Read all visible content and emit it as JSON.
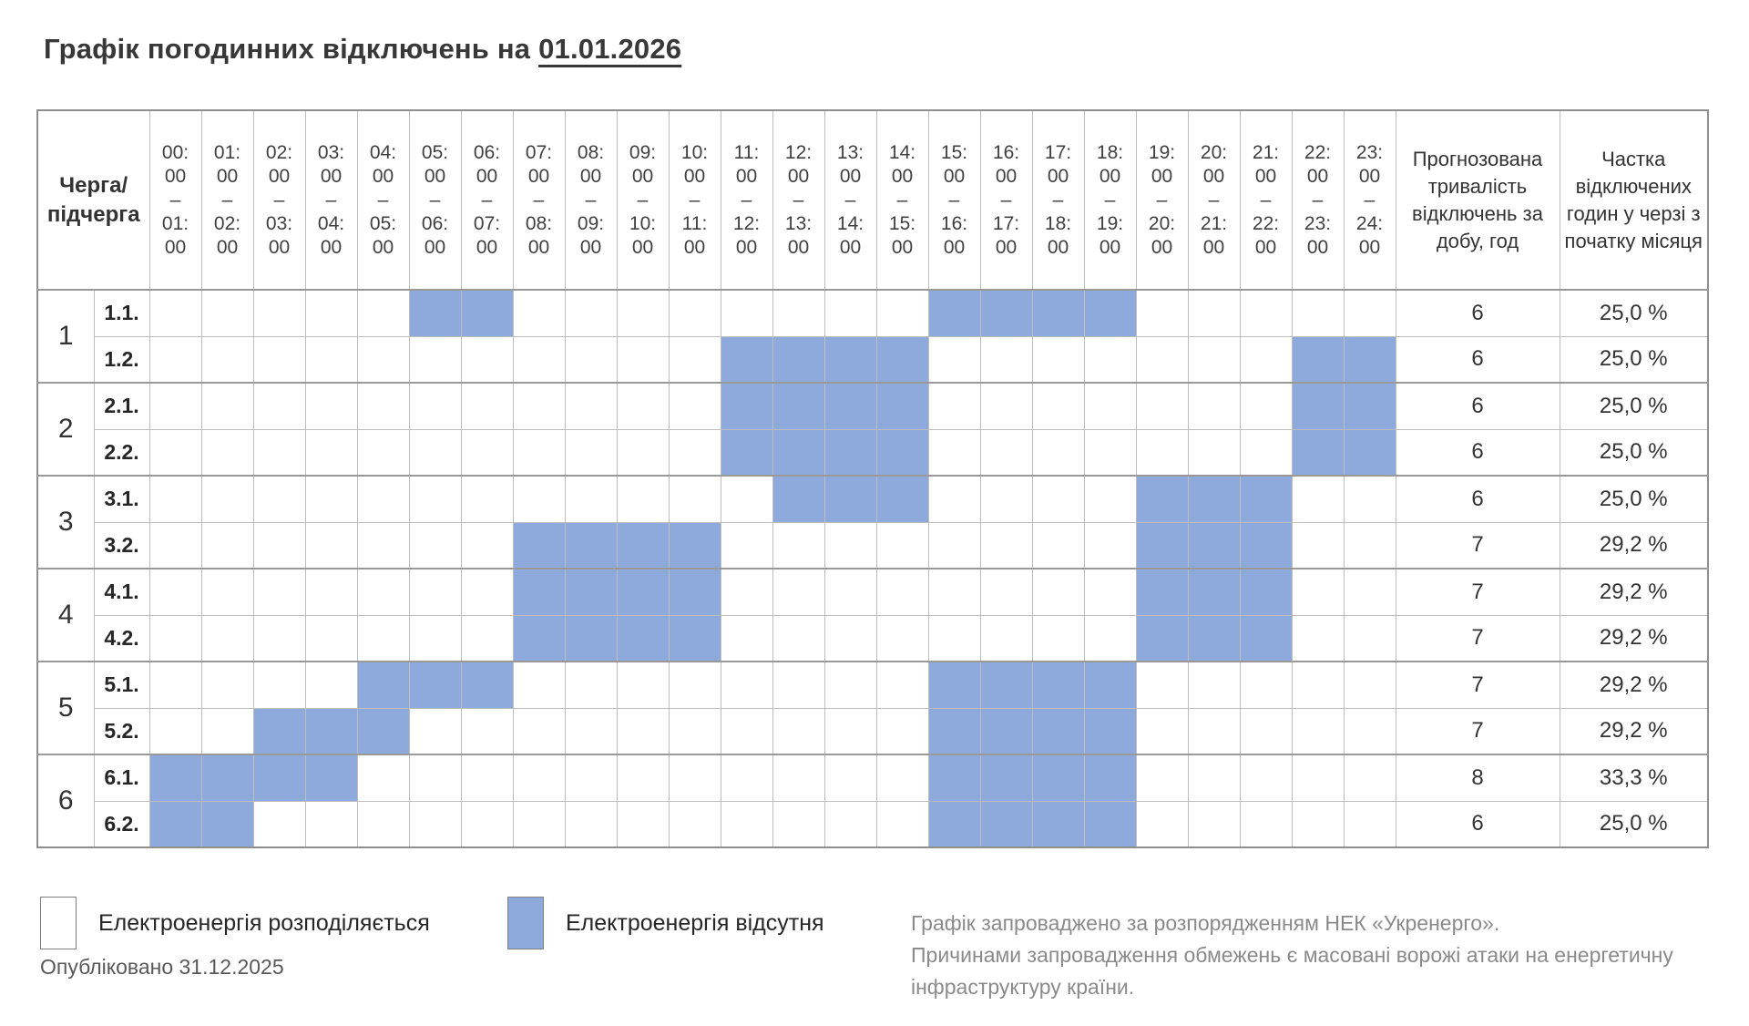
{
  "title": {
    "text": "Графік погодинних відключень на",
    "date": "01.01.2026"
  },
  "chart_data": {
    "type": "heatmap",
    "title": "Графік погодинних відключень на 01.01.2026",
    "corner_header": "Черга/\nпідчерга",
    "hour_separator": "–",
    "hour_columns": [
      {
        "from": "00:00",
        "to": "01:00"
      },
      {
        "from": "01:00",
        "to": "02:00"
      },
      {
        "from": "02:00",
        "to": "03:00"
      },
      {
        "from": "03:00",
        "to": "04:00"
      },
      {
        "from": "04:00",
        "to": "05:00"
      },
      {
        "from": "05:00",
        "to": "06:00"
      },
      {
        "from": "06:00",
        "to": "07:00"
      },
      {
        "from": "07:00",
        "to": "08:00"
      },
      {
        "from": "08:00",
        "to": "09:00"
      },
      {
        "from": "09:00",
        "to": "10:00"
      },
      {
        "from": "10:00",
        "to": "11:00"
      },
      {
        "from": "11:00",
        "to": "12:00"
      },
      {
        "from": "12:00",
        "to": "13:00"
      },
      {
        "from": "13:00",
        "to": "14:00"
      },
      {
        "from": "14:00",
        "to": "15:00"
      },
      {
        "from": "15:00",
        "to": "16:00"
      },
      {
        "from": "16:00",
        "to": "17:00"
      },
      {
        "from": "17:00",
        "to": "18:00"
      },
      {
        "from": "18:00",
        "to": "19:00"
      },
      {
        "from": "19:00",
        "to": "20:00"
      },
      {
        "from": "20:00",
        "to": "21:00"
      },
      {
        "from": "21:00",
        "to": "22:00"
      },
      {
        "from": "22:00",
        "to": "23:00"
      },
      {
        "from": "23:00",
        "to": "24:00"
      }
    ],
    "summary_headers": [
      "Прогнозована тривалість відключень за добу, год",
      "Частка відключених годин у черзі з початку місяця"
    ],
    "queues": [
      {
        "group": "1",
        "rows": [
          {
            "label": "1.1.",
            "outage_hours": [
              5,
              6,
              15,
              16,
              17,
              18
            ],
            "duration": "6",
            "share": "25,0 %"
          },
          {
            "label": "1.2.",
            "outage_hours": [
              11,
              12,
              13,
              14,
              22,
              23
            ],
            "duration": "6",
            "share": "25,0 %"
          }
        ]
      },
      {
        "group": "2",
        "rows": [
          {
            "label": "2.1.",
            "outage_hours": [
              11,
              12,
              13,
              14,
              22,
              23
            ],
            "duration": "6",
            "share": "25,0 %"
          },
          {
            "label": "2.2.",
            "outage_hours": [
              11,
              12,
              13,
              14,
              22,
              23
            ],
            "duration": "6",
            "share": "25,0 %"
          }
        ]
      },
      {
        "group": "3",
        "rows": [
          {
            "label": "3.1.",
            "outage_hours": [
              12,
              13,
              14,
              19,
              20,
              21
            ],
            "duration": "6",
            "share": "25,0 %"
          },
          {
            "label": "3.2.",
            "outage_hours": [
              7,
              8,
              9,
              10,
              19,
              20,
              21
            ],
            "duration": "7",
            "share": "29,2 %"
          }
        ]
      },
      {
        "group": "4",
        "rows": [
          {
            "label": "4.1.",
            "outage_hours": [
              7,
              8,
              9,
              10,
              19,
              20,
              21
            ],
            "duration": "7",
            "share": "29,2 %"
          },
          {
            "label": "4.2.",
            "outage_hours": [
              7,
              8,
              9,
              10,
              19,
              20,
              21
            ],
            "duration": "7",
            "share": "29,2 %"
          }
        ]
      },
      {
        "group": "5",
        "rows": [
          {
            "label": "5.1.",
            "outage_hours": [
              4,
              5,
              6,
              15,
              16,
              17,
              18
            ],
            "duration": "7",
            "share": "29,2 %"
          },
          {
            "label": "5.2.",
            "outage_hours": [
              2,
              3,
              4,
              15,
              16,
              17,
              18
            ],
            "duration": "7",
            "share": "29,2 %"
          }
        ]
      },
      {
        "group": "6",
        "rows": [
          {
            "label": "6.1.",
            "outage_hours": [
              0,
              1,
              2,
              3,
              15,
              16,
              17,
              18
            ],
            "duration": "8",
            "share": "33,3 %"
          },
          {
            "label": "6.2.",
            "outage_hours": [
              0,
              1,
              15,
              16,
              17,
              18
            ],
            "duration": "6",
            "share": "25,0 %"
          }
        ]
      }
    ]
  },
  "legend": {
    "available": {
      "label": "Електроенергія розподіляється",
      "color": "#FFFFFF"
    },
    "outage": {
      "label": "Електроенергія відсутня",
      "color": "#8EA9DB"
    }
  },
  "published": "Опубліковано 31.12.2025",
  "footnote": {
    "lines": [
      "Графік запроваджено за розпорядженням НЕК «Укренерго».",
      "Причинами запровадження обмежень є масовані ворожі атаки на енергетичну",
      "інфраструктуру країни."
    ]
  },
  "colors": {
    "outage": "#8EA9DB",
    "grid": "#BDBDBD",
    "grid_strong": "#8F8F8F",
    "title_text": "#383838",
    "muted_text": "#8A8A8A"
  }
}
